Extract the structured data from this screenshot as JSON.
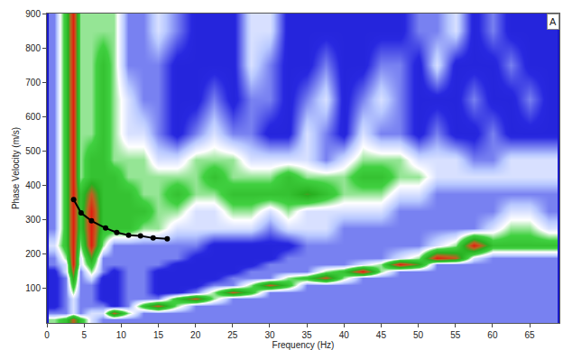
{
  "chart_data": {
    "type": "heatmap",
    "xlabel": "Frequency (Hz)",
    "ylabel": "Phase Velocity (m/s)",
    "xlim": [
      0,
      69
    ],
    "ylim": [
      0,
      900
    ],
    "xticks": [
      0,
      5,
      10,
      15,
      20,
      25,
      30,
      35,
      40,
      45,
      50,
      55,
      60,
      65
    ],
    "yticks": [
      100,
      200,
      300,
      400,
      500,
      600,
      700,
      800,
      900
    ],
    "grid": false,
    "annotations": [
      {
        "text": "A"
      }
    ],
    "heatmap": {
      "x": [
        1,
        2.5,
        3.5,
        4.5,
        6,
        7.5,
        9,
        11,
        13,
        15,
        17.5,
        20,
        22.5,
        25,
        27.5,
        30,
        32.5,
        35,
        37.5,
        40,
        42.5,
        45,
        47.5,
        50,
        52.5,
        55,
        57.5,
        60,
        62.5,
        65,
        67.5
      ],
      "y": [
        10,
        30,
        50,
        70,
        90,
        110,
        130,
        150,
        170,
        190,
        225,
        275,
        325,
        375,
        425,
        475,
        550,
        650,
        750,
        850
      ],
      "zlim": [
        0,
        9
      ],
      "z": [
        [
          5,
          6,
          8,
          6,
          4,
          3,
          3,
          3,
          3,
          3,
          3,
          3,
          3,
          3,
          3,
          3,
          3,
          3,
          3,
          3,
          3,
          3,
          3,
          3,
          3,
          3,
          3,
          3,
          3,
          3,
          3
        ],
        [
          3,
          3,
          4,
          3,
          4,
          4,
          8,
          5,
          3,
          3,
          3,
          3,
          3,
          3,
          3,
          3,
          3,
          3,
          3,
          3,
          3,
          3,
          3,
          3,
          3,
          3,
          3,
          3,
          3,
          3,
          3
        ],
        [
          2,
          3,
          4,
          3,
          3,
          3,
          2,
          3,
          6,
          8,
          5,
          3,
          3,
          3,
          3,
          3,
          3,
          3,
          3,
          3,
          3,
          3,
          3,
          3,
          3,
          3,
          3,
          3,
          3,
          3,
          3
        ],
        [
          2,
          3,
          4,
          3,
          3,
          2,
          2,
          3,
          3,
          3,
          6,
          8,
          5,
          3,
          3,
          3,
          3,
          3,
          3,
          3,
          3,
          3,
          3,
          3,
          3,
          3,
          3,
          3,
          3,
          3,
          3
        ],
        [
          2,
          3,
          5,
          3,
          3,
          2,
          2,
          3,
          3,
          2,
          2,
          3,
          5,
          8,
          6,
          3,
          3,
          3,
          3,
          3,
          3,
          3,
          3,
          3,
          3,
          3,
          3,
          3,
          3,
          3,
          3
        ],
        [
          2,
          3,
          6,
          3,
          3,
          2,
          2,
          3,
          3,
          2,
          2,
          2,
          3,
          3,
          5,
          8,
          6,
          3,
          3,
          3,
          3,
          3,
          3,
          3,
          3,
          3,
          3,
          3,
          3,
          3,
          3
        ],
        [
          2,
          3,
          7,
          3,
          4,
          2,
          2,
          3,
          3,
          2,
          2,
          2,
          2,
          3,
          3,
          3,
          5,
          6,
          8,
          5,
          3,
          3,
          3,
          3,
          3,
          3,
          3,
          3,
          3,
          3,
          3
        ],
        [
          2,
          4,
          8,
          3,
          5,
          3,
          2,
          3,
          3,
          2,
          2,
          2,
          2,
          2,
          3,
          3,
          3,
          3,
          5,
          6,
          9,
          5,
          3,
          3,
          3,
          3,
          3,
          3,
          3,
          3,
          3
        ],
        [
          3,
          4,
          9,
          4,
          6,
          3,
          3,
          3,
          3,
          3,
          2,
          2,
          2,
          2,
          2,
          3,
          3,
          3,
          3,
          3,
          4,
          5,
          9,
          7,
          3,
          3,
          3,
          3,
          3,
          3,
          3
        ],
        [
          3,
          5,
          9,
          4,
          7,
          3,
          3,
          3,
          3,
          3,
          3,
          2,
          2,
          2,
          2,
          2,
          3,
          3,
          3,
          3,
          3,
          3,
          4,
          5,
          9,
          8,
          4,
          3,
          3,
          3,
          3
        ],
        [
          4,
          6,
          9,
          5,
          9,
          5,
          3,
          3,
          3,
          3,
          3,
          3,
          2,
          2,
          2,
          2,
          2,
          3,
          3,
          3,
          3,
          3,
          3,
          3,
          4,
          5,
          9,
          6,
          6,
          6,
          6
        ],
        [
          3,
          6,
          9,
          6,
          9,
          6,
          6,
          6,
          5,
          5,
          4,
          4,
          4,
          4,
          4,
          3,
          4,
          4,
          4,
          3,
          3,
          3,
          3,
          3,
          3,
          3,
          3,
          4,
          5,
          5,
          4
        ],
        [
          3,
          6,
          9,
          6,
          9,
          6,
          6,
          6,
          6,
          5,
          5,
          4,
          4,
          5,
          5,
          4,
          5,
          4,
          4,
          4,
          4,
          4,
          3,
          3,
          3,
          3,
          3,
          3,
          4,
          4,
          3
        ],
        [
          3,
          6,
          9,
          6,
          8,
          6,
          6,
          6,
          5,
          5,
          6,
          5,
          5,
          6,
          6,
          6,
          6,
          7,
          6,
          5,
          5,
          5,
          4,
          4,
          3,
          3,
          3,
          3,
          3,
          3,
          3
        ],
        [
          3,
          6,
          9,
          5,
          6,
          6,
          6,
          5,
          5,
          5,
          5,
          5,
          6,
          5,
          5,
          5,
          6,
          5,
          5,
          5,
          6,
          6,
          5,
          5,
          4,
          4,
          4,
          4,
          4,
          4,
          4
        ],
        [
          3,
          6,
          9,
          5,
          6,
          6,
          5,
          5,
          5,
          4,
          4,
          5,
          5,
          5,
          4,
          4,
          4,
          4,
          3,
          4,
          5,
          5,
          5,
          4,
          4,
          4,
          3,
          3,
          4,
          4,
          4
        ],
        [
          3,
          6,
          9,
          5,
          5,
          6,
          5,
          4,
          4,
          3,
          2,
          3,
          4,
          3,
          3,
          2,
          2,
          4,
          3,
          2,
          4,
          3,
          3,
          2,
          3,
          2,
          2,
          3,
          2,
          2,
          2
        ],
        [
          3,
          6,
          9,
          5,
          5,
          6,
          5,
          4,
          3,
          3,
          2,
          2,
          3,
          2,
          3,
          3,
          2,
          3,
          4,
          2,
          3,
          4,
          3,
          2,
          2,
          2,
          3,
          2,
          2,
          3,
          2
        ],
        [
          3,
          6,
          9,
          5,
          5,
          6,
          5,
          3,
          3,
          3,
          2,
          2,
          2,
          2,
          4,
          3,
          2,
          2,
          3,
          2,
          2,
          3,
          3,
          2,
          4,
          2,
          2,
          2,
          3,
          2,
          2
        ],
        [
          3,
          6,
          9,
          5,
          5,
          5,
          5,
          3,
          3,
          4,
          3,
          2,
          2,
          2,
          4,
          4,
          2,
          2,
          2,
          2,
          2,
          2,
          2,
          3,
          3,
          4,
          2,
          3,
          2,
          2,
          2
        ]
      ]
    },
    "series": [
      {
        "type": "line",
        "color": "#000000",
        "marker": "circle",
        "x": [
          3.6,
          4.6,
          6.0,
          7.9,
          9.4,
          11.0,
          12.6,
          14.3,
          16.2
        ],
        "y": [
          359,
          320,
          297,
          276,
          263,
          255,
          253,
          247,
          245
        ]
      }
    ]
  }
}
